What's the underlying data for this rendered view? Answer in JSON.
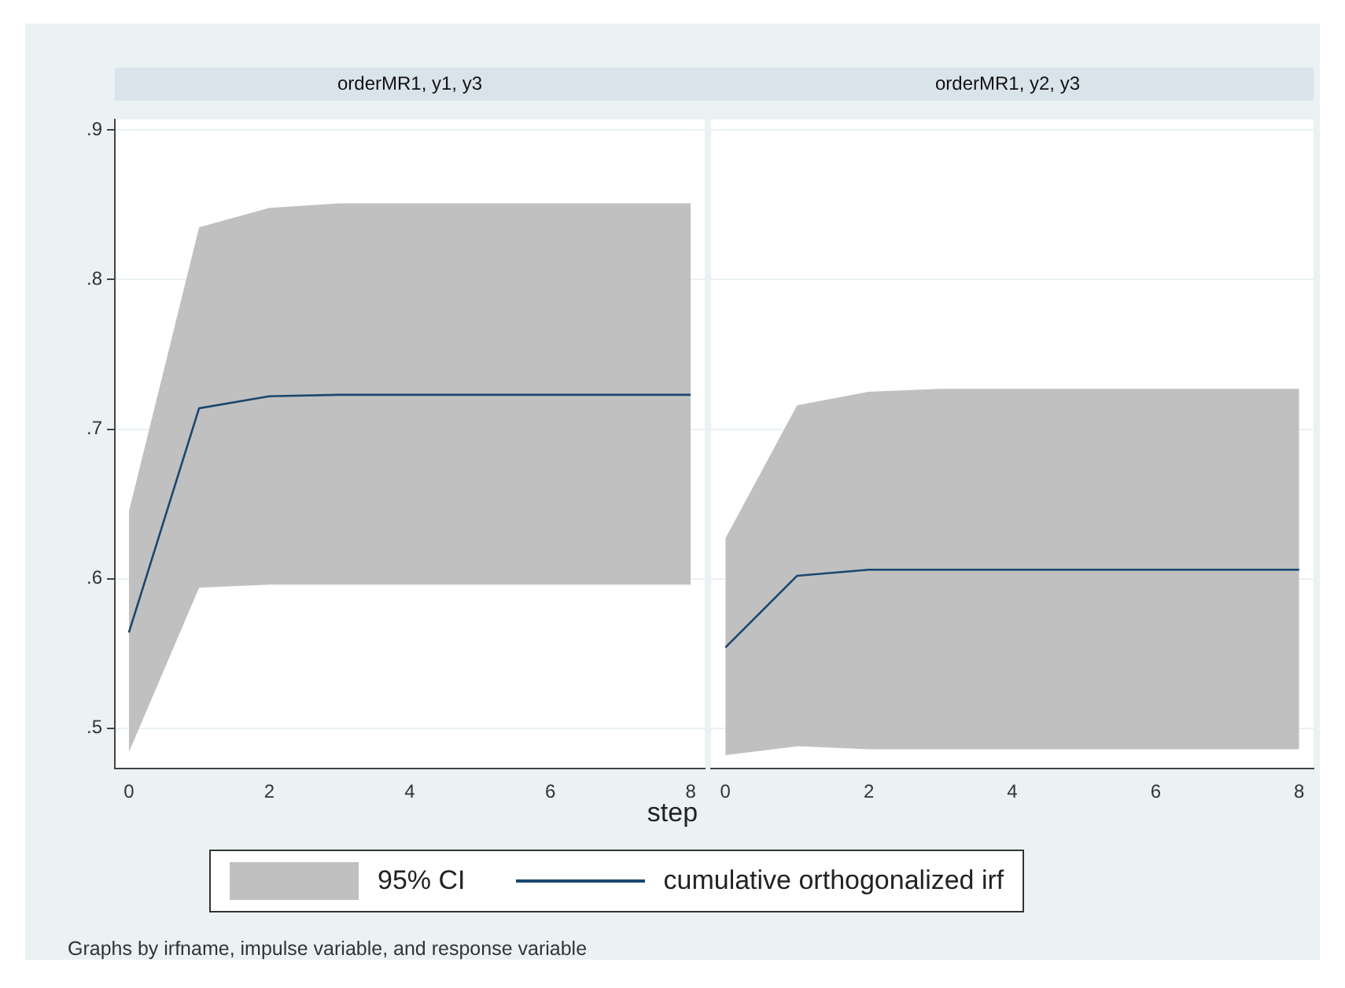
{
  "chart_data": [
    {
      "type": "line",
      "title": "orderMR1, y1, y3",
      "xlabel": "step",
      "x": [
        0,
        1,
        2,
        3,
        4,
        5,
        6,
        7,
        8
      ],
      "series": [
        {
          "name": "cumulative orthogonalized irf",
          "color": "#1a476f",
          "values": [
            0.564,
            0.714,
            0.722,
            0.723,
            0.723,
            0.723,
            0.723,
            0.723,
            0.723
          ],
          "lower": [
            0.484,
            0.594,
            0.596,
            0.596,
            0.596,
            0.596,
            0.596,
            0.596,
            0.596
          ],
          "upper": [
            0.645,
            0.835,
            0.848,
            0.851,
            0.851,
            0.851,
            0.851,
            0.851,
            0.851
          ]
        }
      ],
      "xlim": [
        -0.2,
        8.2
      ],
      "xticks": [
        0,
        2,
        4,
        6,
        8
      ],
      "ylim": [
        0.473,
        0.907
      ],
      "yticks": [
        {
          "value": 0.5,
          "label": ".5"
        },
        {
          "value": 0.6,
          "label": ".6"
        },
        {
          "value": 0.7,
          "label": ".7"
        },
        {
          "value": 0.8,
          "label": ".8"
        },
        {
          "value": 0.9,
          "label": ".9"
        }
      ],
      "grid": "y",
      "legend": "bottom",
      "annotations": [
        "95% CI",
        "Graphs by irfname, impulse variable, and response variable"
      ]
    },
    {
      "type": "line",
      "title": "orderMR1, y2, y3",
      "x": [
        0,
        1,
        2,
        3,
        4,
        5,
        6,
        7,
        8
      ],
      "series": [
        {
          "color": "#1a476f",
          "values": [
            0.554,
            0.602,
            0.606,
            0.606,
            0.606,
            0.606,
            0.606,
            0.606,
            0.606
          ],
          "lower": [
            0.482,
            0.488,
            0.486,
            0.486,
            0.486,
            0.486,
            0.486,
            0.486,
            0.486
          ],
          "upper": [
            0.627,
            0.716,
            0.725,
            0.727,
            0.727,
            0.727,
            0.727,
            0.727,
            0.727
          ]
        }
      ],
      "xlim": [
        -0.2,
        8.2
      ],
      "xticks": [
        0,
        2,
        4,
        6,
        8
      ],
      "ylim": [
        0.473,
        0.907
      ],
      "yticks": [
        0.5,
        0.6,
        0.7,
        0.8,
        0.9
      ],
      "grid": "y",
      "tick_labels": "x"
    }
  ]
}
